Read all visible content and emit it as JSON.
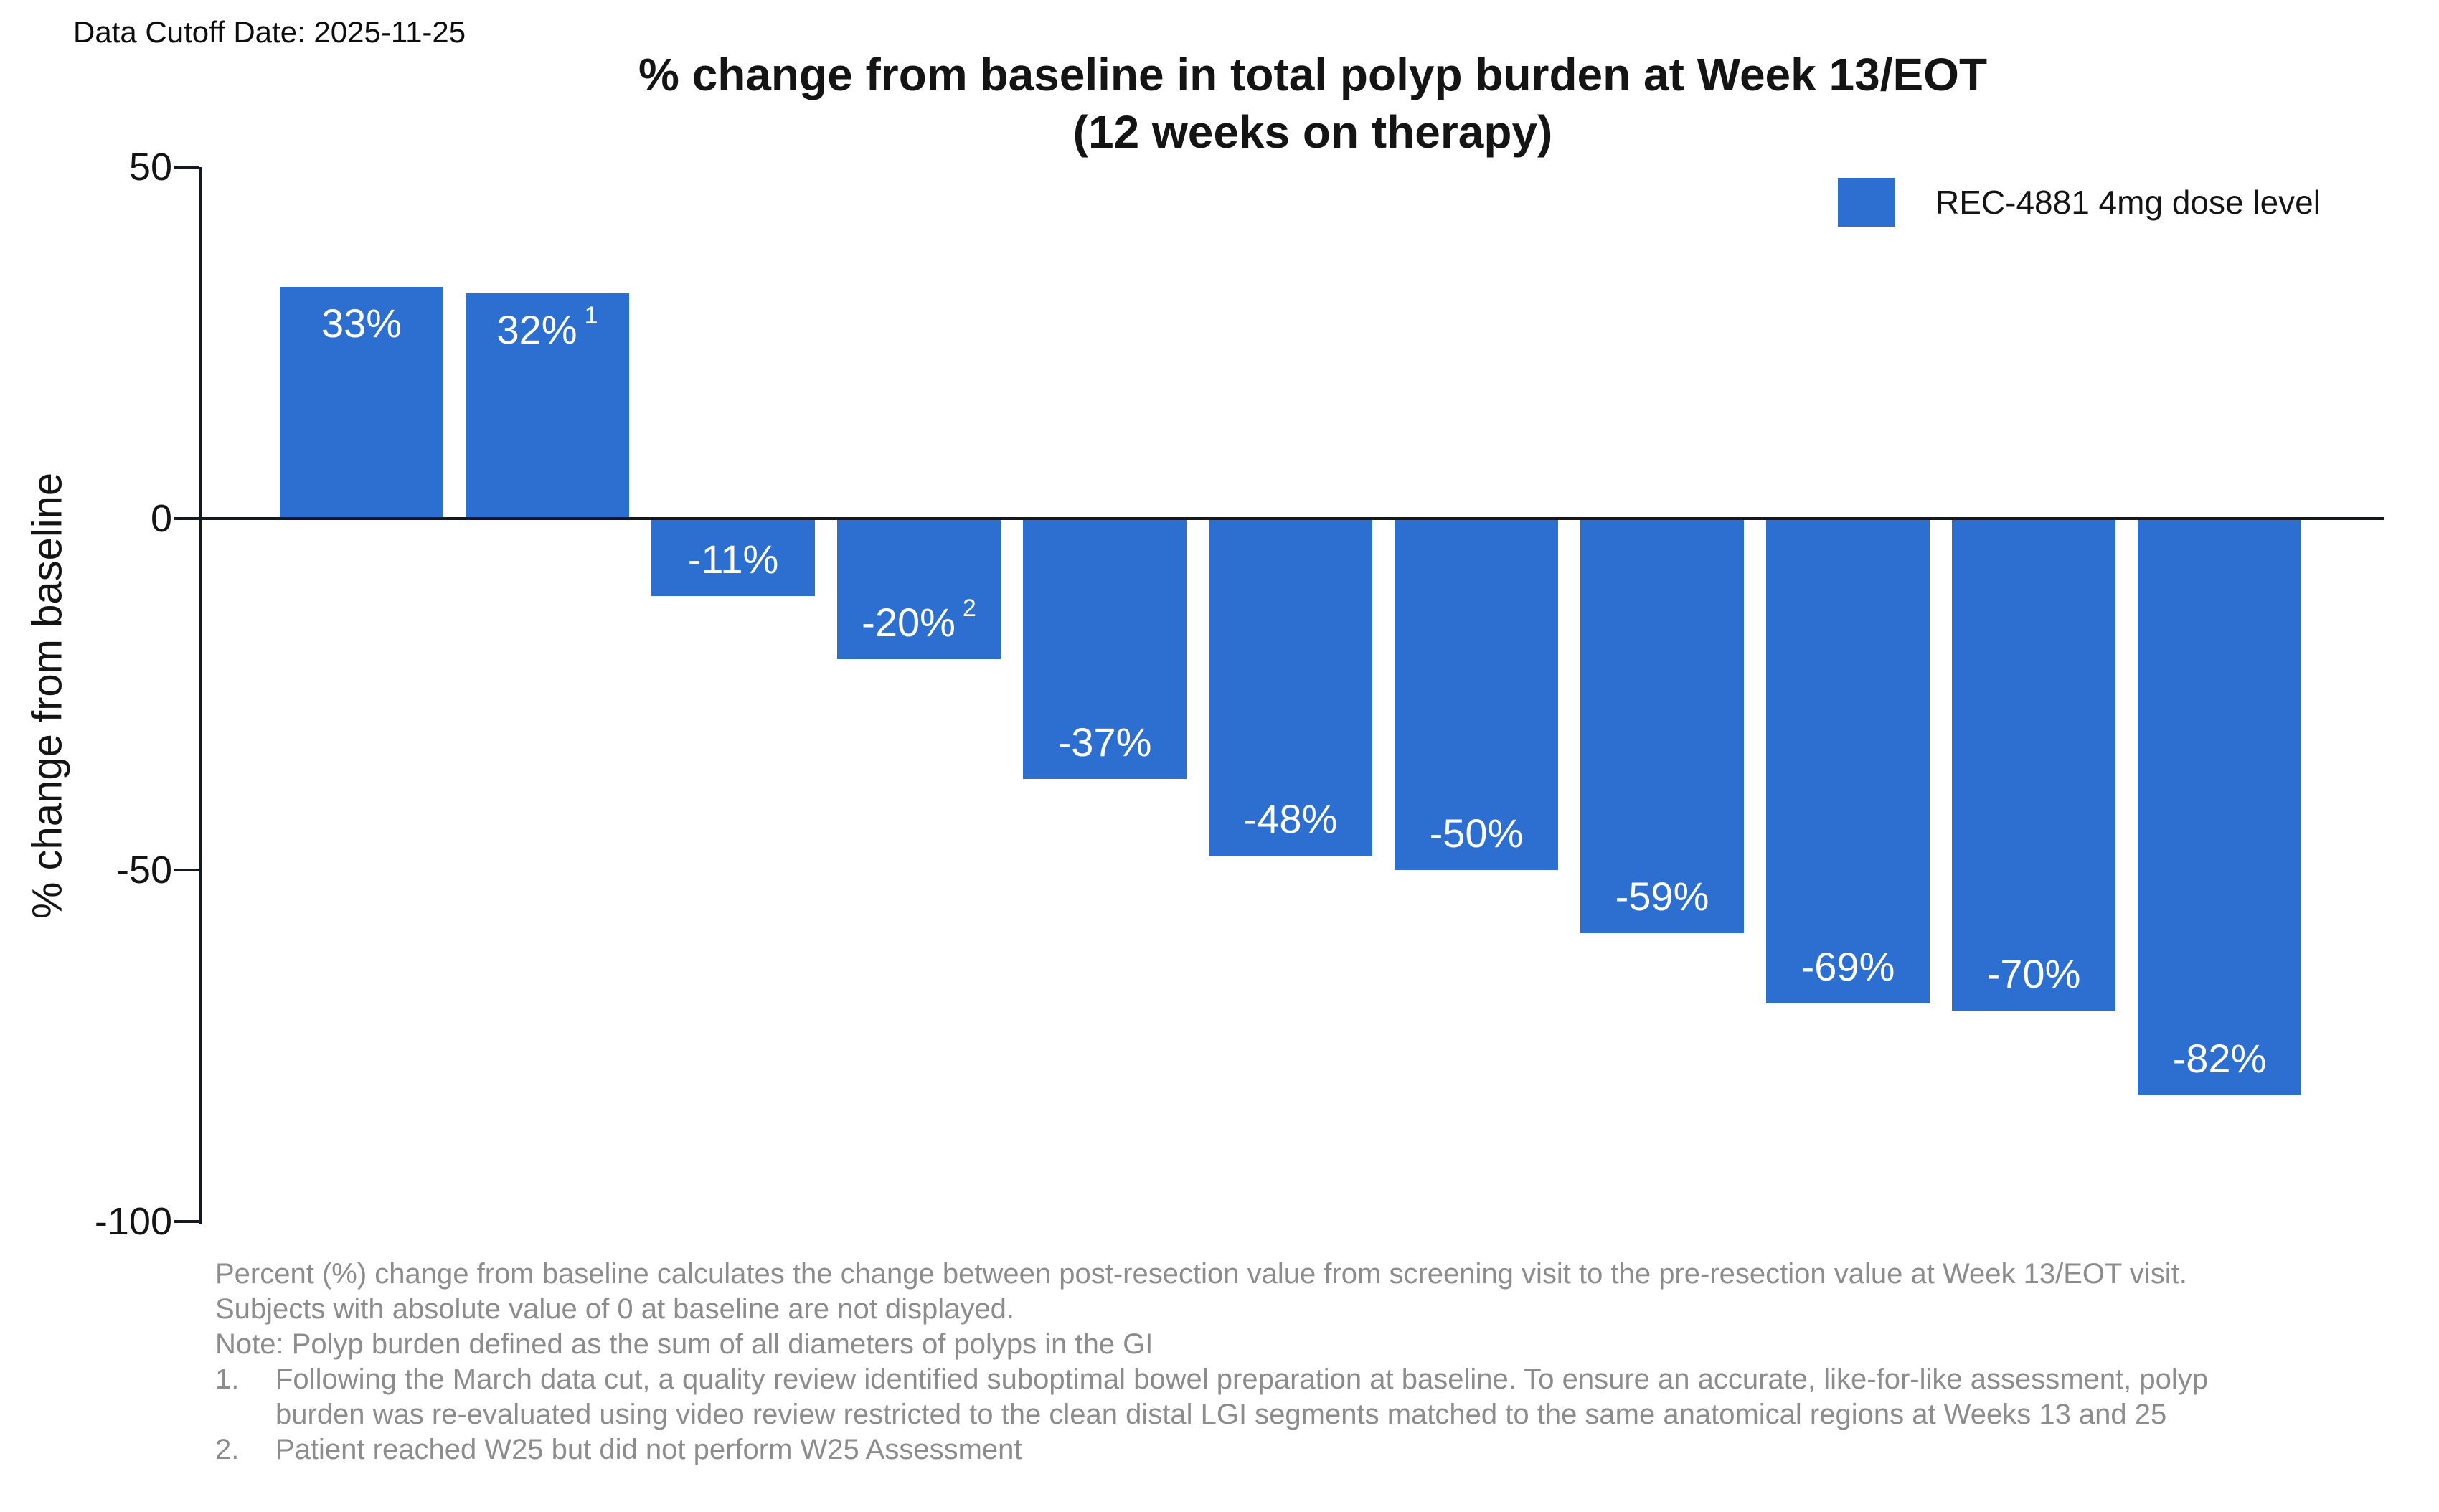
{
  "header": {
    "data_cutoff": "Data Cutoff Date: 2025-11-25"
  },
  "chart_data": {
    "type": "bar",
    "title": "% change from baseline in total polyp burden at Week 13/EOT",
    "subtitle": "(12 weeks on therapy)",
    "ylabel": "% change from baseline",
    "xlabel": "",
    "ylim": [
      -100,
      50
    ],
    "yticks": [
      50,
      0,
      -50,
      -100
    ],
    "grid": false,
    "legend_position": "top-right",
    "legend": [
      "REC-4881 4mg dose level"
    ],
    "bar_color": "#2d6fd0",
    "axis_color": "#15181e",
    "series": [
      {
        "name": "REC-4881 4mg dose level",
        "values": [
          33,
          32,
          -11,
          -20,
          -37,
          -48,
          -50,
          -59,
          -69,
          -70,
          -82
        ],
        "labels": [
          "33%",
          "32%",
          "-11%",
          "-20%",
          "-37%",
          "-48%",
          "-50%",
          "-59%",
          "-69%",
          "-70%",
          "-82%"
        ],
        "superscripts": [
          "",
          "1",
          "",
          "2",
          "",
          "",
          "",
          "",
          "",
          "",
          ""
        ]
      }
    ]
  },
  "footnotes": {
    "main": "Percent (%) change from baseline calculates the change between post-resection value from screening visit to the pre-resection value at Week 13/EOT visit. Subjects with absolute value of 0 at baseline are not displayed.",
    "note": "Note: Polyp burden defined as the sum of all diameters of polyps in the GI",
    "items": [
      {
        "num": "1.",
        "text": "Following the March data cut, a quality review identified suboptimal bowel preparation at baseline. To ensure an accurate, like-for-like assessment, polyp burden was re-evaluated using video review restricted to the clean distal LGI segments matched to the same anatomical regions at Weeks 13 and 25"
      },
      {
        "num": "2.",
        "text": "Patient reached W25 but did not perform W25 Assessment"
      }
    ]
  }
}
